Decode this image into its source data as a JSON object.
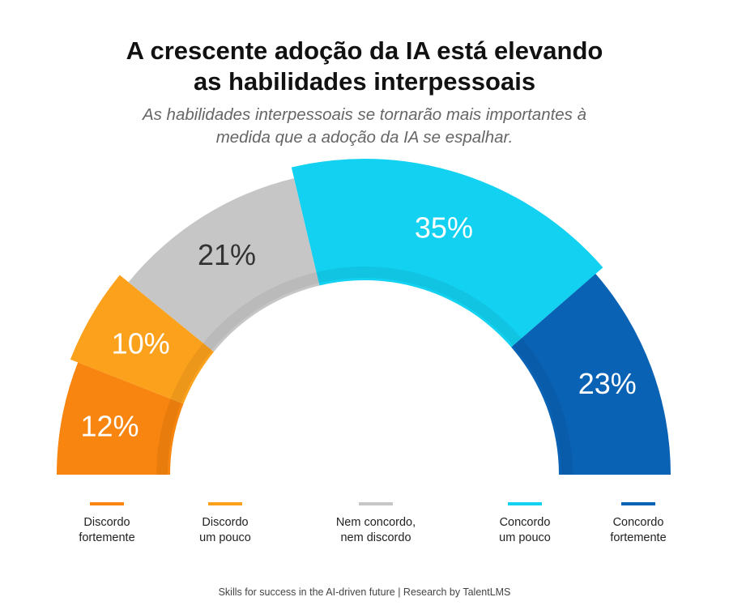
{
  "title_line1": "A crescente adoção da IA está elevando",
  "title_line2": "as habilidades interpessoais",
  "subtitle_line1": "As habilidades interpessoais se tornarão mais importantes à",
  "subtitle_line2": "medida que a adoção da IA se espalhar.",
  "source": "Skills for success in the AI-driven future  |  Research by TalentLMS",
  "chart_data": {
    "type": "pie",
    "variant": "half-donut",
    "title": "A crescente adoção da IA está elevando as habilidades interpessoais",
    "subtitle": "As habilidades interpessoais se tornarão mais importantes à medida que a adoção da IA se espalhar.",
    "unit": "%",
    "legend_position": "bottom",
    "slices": [
      {
        "name": "Discordo\nfortemente",
        "value": 12,
        "label": "12%",
        "color": "#F7850F",
        "label_color": "#ffffff"
      },
      {
        "name": "Discordo\num pouco",
        "value": 10,
        "label": "10%",
        "color": "#FBA11B",
        "label_color": "#ffffff"
      },
      {
        "name": "Nem concordo,\nnem discordo",
        "value": 21,
        "label": "21%",
        "color": "#C6C6C6",
        "label_color": "#333333"
      },
      {
        "name": "Concordo\num pouco",
        "value": 35,
        "label": "35%",
        "color": "#12D1F1",
        "label_color": "#ffffff"
      },
      {
        "name": "Concordo\nfortemente",
        "value": 23,
        "label": "23%",
        "color": "#0A62B5",
        "label_color": "#ffffff"
      }
    ]
  }
}
